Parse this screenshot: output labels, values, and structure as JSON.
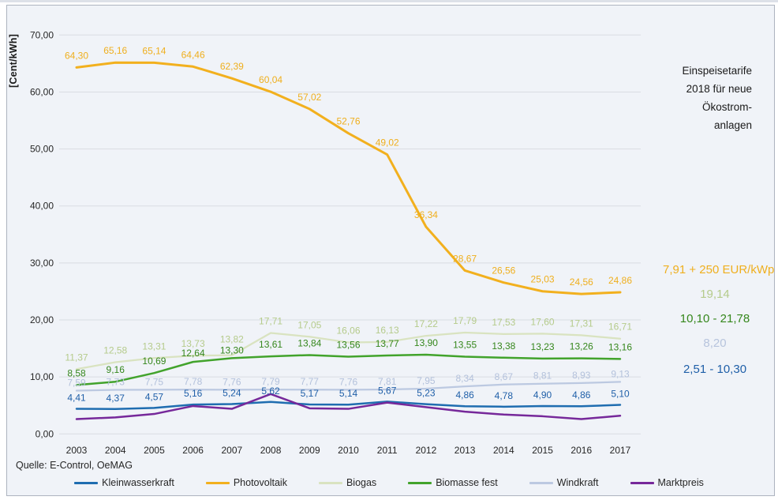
{
  "y_axis": {
    "title": "[Cent/kWh]",
    "tick_labels": [
      "0,00",
      "10,00",
      "20,00",
      "30,00",
      "40,00",
      "50,00",
      "60,00",
      "70,00"
    ]
  },
  "source": "Quelle: E-Control, OeMAG",
  "annotation_2018": {
    "title_lines": [
      "Einspeisetarife",
      "2018 für neue",
      "Ökostrom-",
      "anlagen"
    ],
    "items": [
      {
        "key": "photovoltaik",
        "text": "7,91 + 250 EUR/kWp",
        "color": "#EFAF1E"
      },
      {
        "key": "biogas",
        "text": "19,14",
        "color": "#B5CB8B"
      },
      {
        "key": "biomasse-fest",
        "text": "10,10 - 21,78",
        "color": "#35871C"
      },
      {
        "key": "windkraft",
        "text": "8,20",
        "color": "#B7C4DD"
      },
      {
        "key": "kleinwasserkraft",
        "text": "2,51 - 10,30",
        "color": "#1F5FA8"
      }
    ]
  },
  "chart_data": {
    "type": "line",
    "title": "",
    "ylabel": "[Cent/kWh]",
    "xlabel": "",
    "ylim": [
      0,
      70
    ],
    "grid": "horizontal",
    "legend_position": "bottom",
    "x": [
      "2003",
      "2004",
      "2005",
      "2006",
      "2007",
      "2008",
      "2009",
      "2010",
      "2011",
      "2012",
      "2013",
      "2014",
      "2015",
      "2016",
      "2017"
    ],
    "legend_order": [
      "kleinwasserkraft",
      "photovoltaik",
      "biogas",
      "biomasse-fest",
      "windkraft",
      "marktpreis"
    ],
    "series": [
      {
        "key": "biogas",
        "name": "Biogas",
        "color": "#D9E3C0",
        "label_color": "#B5CB8B",
        "line_width": 2.25,
        "values": [
          11.37,
          12.58,
          13.31,
          13.73,
          13.82,
          17.71,
          17.05,
          16.06,
          16.13,
          17.22,
          17.79,
          17.53,
          17.6,
          17.31,
          16.71
        ],
        "labels": [
          "11,37",
          "12,58",
          "13,31",
          "13,73",
          "13,82",
          "17,71",
          "17,05",
          "16,06",
          "16,13",
          "17,22",
          "17,79",
          "17,53",
          "17,60",
          "17,31",
          "16,71"
        ]
      },
      {
        "key": "windkraft",
        "name": "Windkraft",
        "color": "#BCC9E1",
        "label_color": "#B3C1DB",
        "line_width": 2.25,
        "values": [
          7.59,
          7.73,
          7.75,
          7.78,
          7.76,
          7.79,
          7.77,
          7.76,
          7.81,
          7.95,
          8.34,
          8.67,
          8.81,
          8.93,
          9.13
        ],
        "labels": [
          "7,59",
          "7,73",
          "7,75",
          "7,78",
          "7,76",
          "7,79",
          "7,77",
          "7,76",
          "7,81",
          "7,95",
          "8,34",
          "8,67",
          "8,81",
          "8,93",
          "9,13"
        ]
      },
      {
        "key": "biomasse-fest",
        "name": "Biomasse fest",
        "color": "#42A32C",
        "label_color": "#35871C",
        "line_width": 2.5,
        "values": [
          8.58,
          9.16,
          10.69,
          12.64,
          13.3,
          13.61,
          13.84,
          13.56,
          13.77,
          13.9,
          13.55,
          13.38,
          13.23,
          13.26,
          13.16
        ],
        "labels": [
          "8,58",
          "9,16",
          "10,69",
          "12,64",
          "13,30",
          "13,61",
          "13,84",
          "13,56",
          "13,77",
          "13,90",
          "13,55",
          "13,38",
          "13,23",
          "13,26",
          "13,16"
        ]
      },
      {
        "key": "kleinwasserkraft",
        "name": "Kleinwasserkraft",
        "color": "#1F6DB0",
        "label_color": "#1F5FA8",
        "line_width": 2.5,
        "values": [
          4.41,
          4.37,
          4.57,
          5.16,
          5.24,
          5.62,
          5.17,
          5.14,
          5.67,
          5.23,
          4.86,
          4.78,
          4.9,
          4.86,
          5.1
        ],
        "labels": [
          "4,41",
          "4,37",
          "4,57",
          "5,16",
          "5,24",
          "5,62",
          "5,17",
          "5,14",
          "5,67",
          "5,23",
          "4,86",
          "4,78",
          "4,90",
          "4,86",
          "5,10"
        ]
      },
      {
        "key": "marktpreis",
        "name": "Marktpreis",
        "color": "#76289A",
        "label_color": "#76289A",
        "line_width": 2.5,
        "values": [
          2.6,
          2.9,
          3.5,
          4.9,
          4.4,
          7.0,
          4.5,
          4.4,
          5.5,
          4.7,
          3.9,
          3.4,
          3.1,
          2.6,
          3.2
        ],
        "labels": []
      },
      {
        "key": "photovoltaik",
        "name": "Photovoltaik",
        "color": "#F2B01E",
        "label_color": "#EFAF1E",
        "line_width": 3,
        "values": [
          64.3,
          65.16,
          65.14,
          64.46,
          62.39,
          60.04,
          57.02,
          52.76,
          49.02,
          36.34,
          28.67,
          26.56,
          25.03,
          24.56,
          24.86
        ],
        "labels": [
          "64,30",
          "65,16",
          "65,14",
          "64,46",
          "62,39",
          "60,04",
          "57,02",
          "52,76",
          "49,02",
          "36,34",
          "28,67",
          "26,56",
          "25,03",
          "24,56",
          "24,86"
        ]
      }
    ]
  }
}
